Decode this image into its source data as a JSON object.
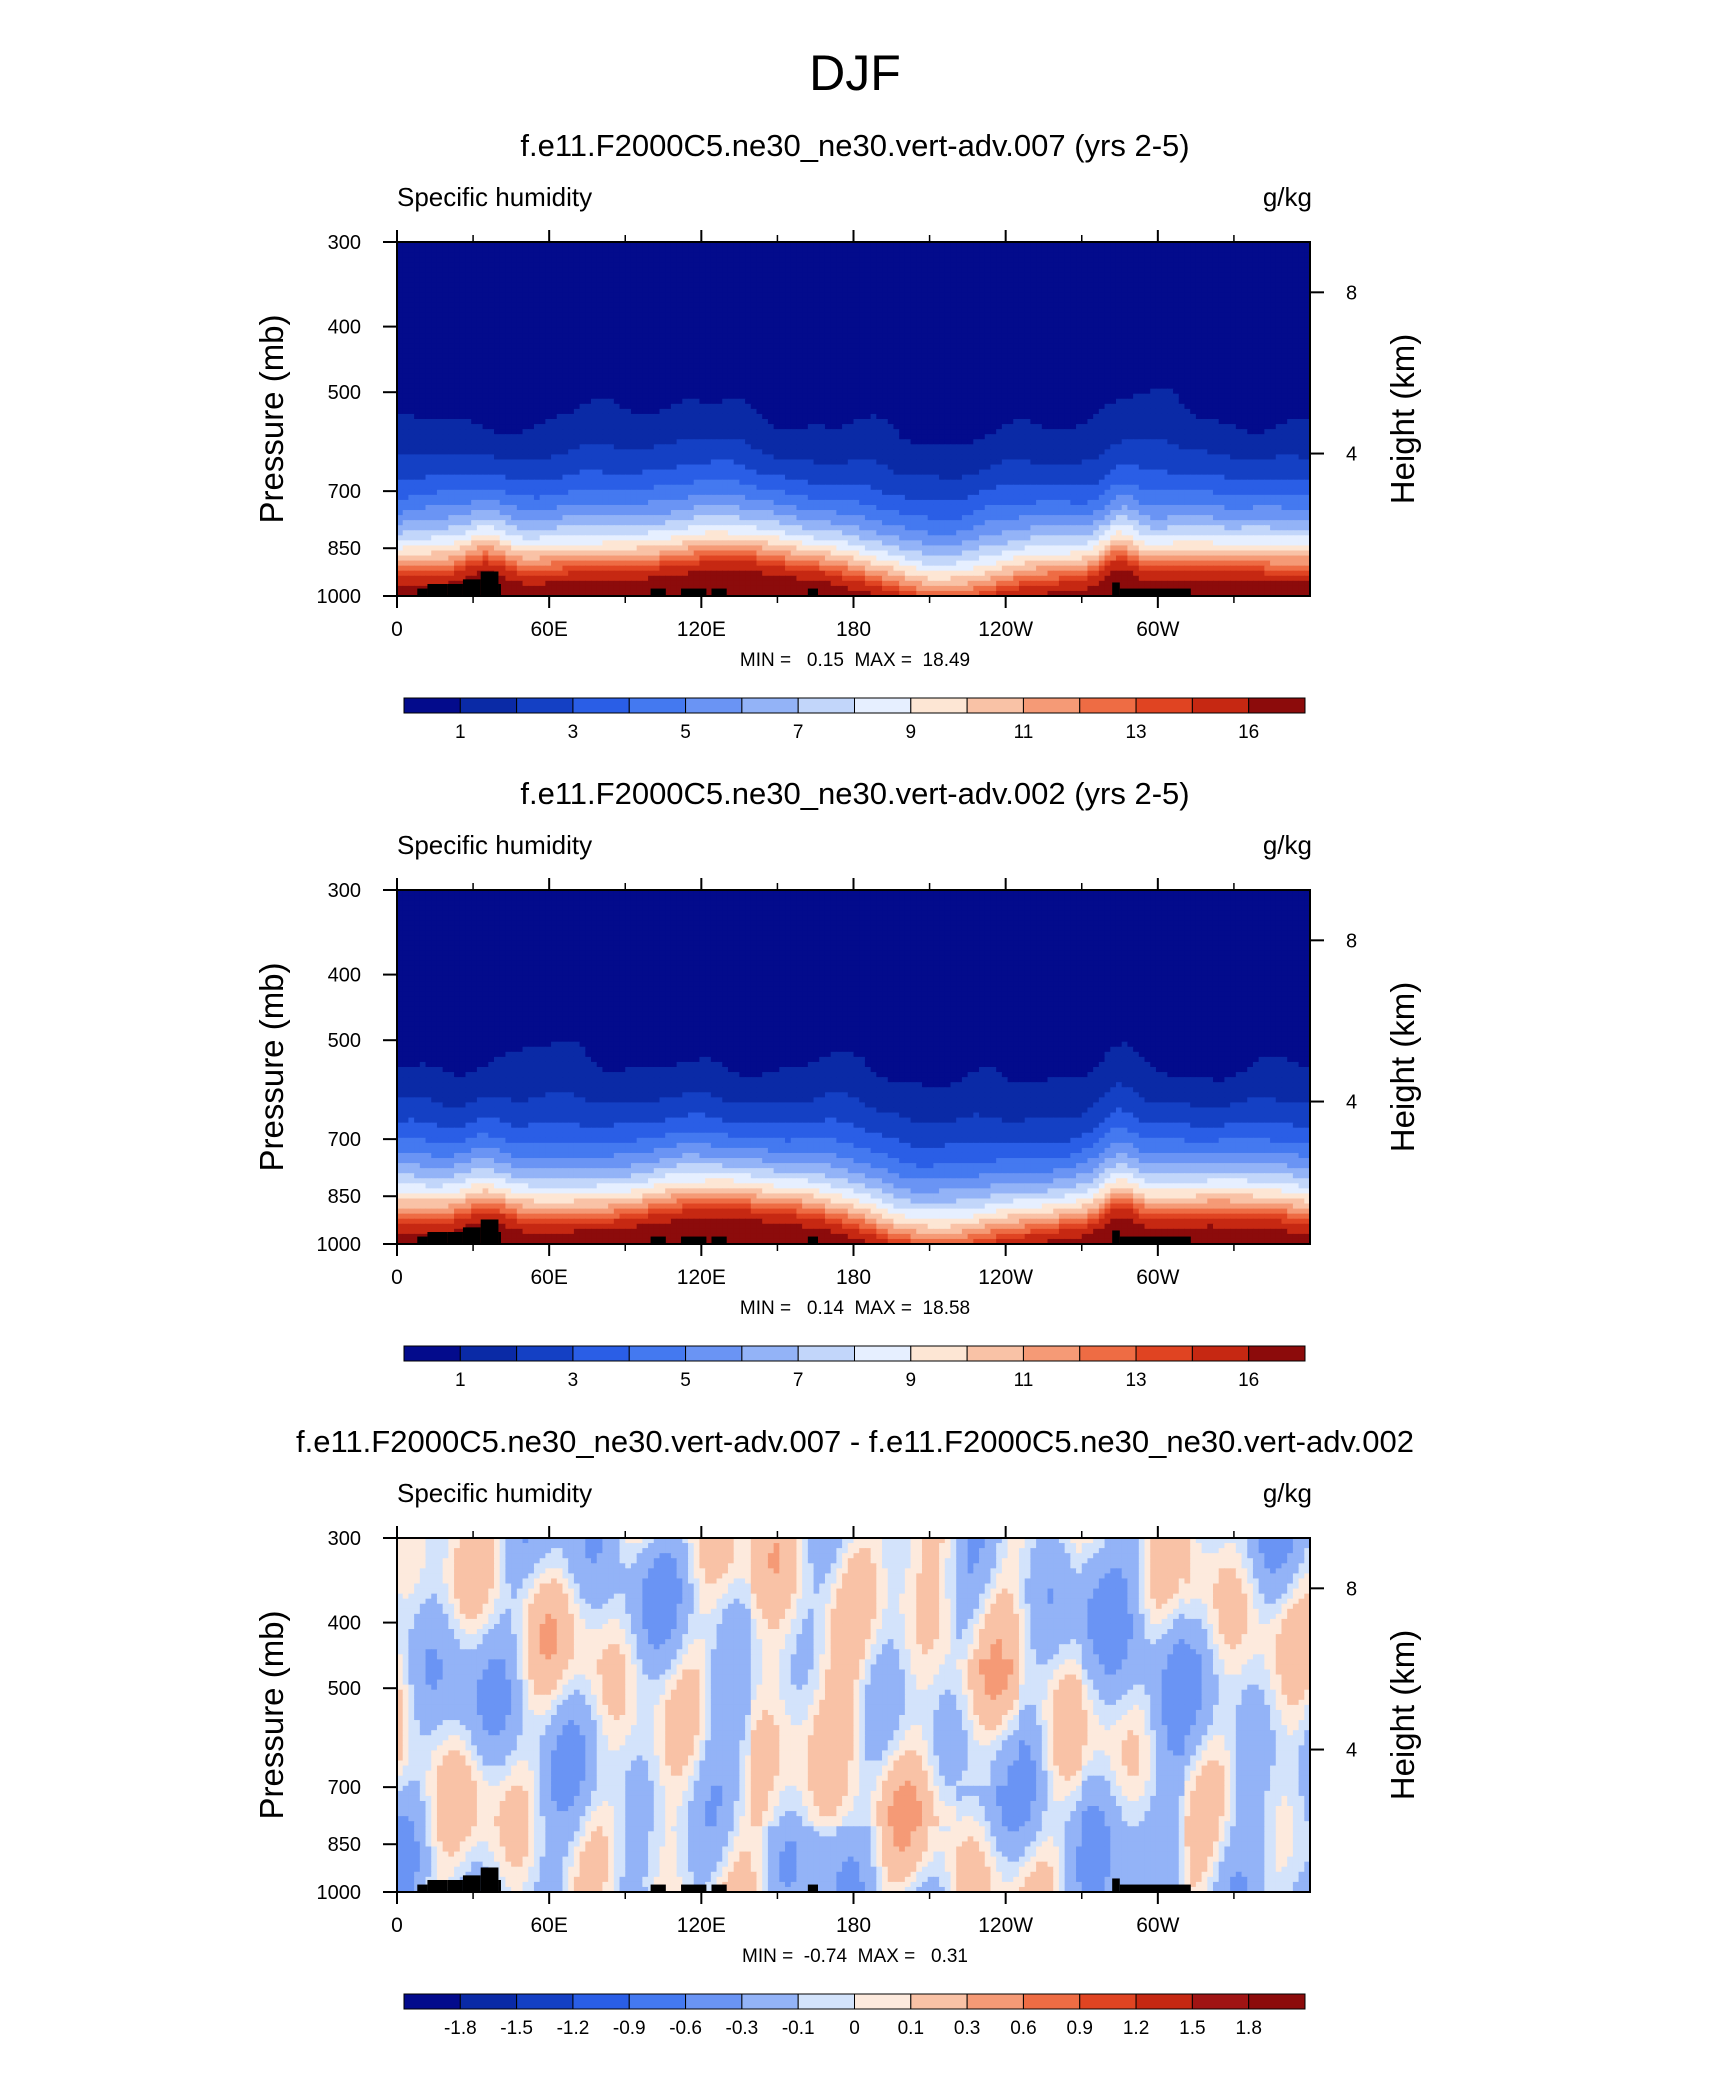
{
  "title": "DJF",
  "panels": [
    {
      "title": "f.e11.F2000C5.ne30_ne30.vert-adv.007 (yrs 2-5)",
      "variable": "Specific humidity",
      "units": "g/kg",
      "minmax": "MIN =   0.15  MAX =  18.49",
      "kind": "abs"
    },
    {
      "title": "f.e11.F2000C5.ne30_ne30.vert-adv.002 (yrs 2-5)",
      "variable": "Specific humidity",
      "units": "g/kg",
      "minmax": "MIN =   0.14  MAX =  18.58",
      "kind": "abs"
    },
    {
      "title": "f.e11.F2000C5.ne30_ne30.vert-adv.007 - f.e11.F2000C5.ne30_ne30.vert-adv.002",
      "variable": "Specific humidity",
      "units": "g/kg",
      "minmax": "MIN =  -0.74  MAX =   0.31",
      "kind": "diff"
    }
  ],
  "chart_data": [
    {
      "type": "heatmap",
      "panel": 0,
      "title": "f.e11.F2000C5.ne30_ne30.vert-adv.007 (yrs 2-5)",
      "variable": "Specific humidity",
      "units": "g/kg",
      "xlabel": "",
      "ylabel": "Pressure (mb)",
      "ylabel_right": "Height (km)",
      "x_ticks": [
        "0",
        "60E",
        "120E",
        "180",
        "120W",
        "60W"
      ],
      "y_ticks": [
        "300",
        "400",
        "500",
        "700",
        "850",
        "1000"
      ],
      "y_ticks_right": [
        "8",
        "4"
      ],
      "ylim": [
        1000,
        300
      ],
      "xlim": [
        0,
        360
      ],
      "min": 0.15,
      "max": 18.49,
      "colorbar_levels": [
        1,
        2,
        3,
        4,
        5,
        6,
        7,
        8,
        9,
        10,
        11,
        12,
        13,
        14,
        16
      ],
      "colorbar_labels": [
        "1",
        "3",
        "5",
        "7",
        "9",
        "11",
        "13",
        "16"
      ],
      "colors": [
        "#030b8c",
        "#0a2aa6",
        "#1440c4",
        "#2a5ee6",
        "#4479f0",
        "#6a94f4",
        "#93b3f7",
        "#c2d6fa",
        "#e6efff",
        "#fde6d4",
        "#f9c2a6",
        "#f59a76",
        "#ee6c44",
        "#e04422",
        "#c62812",
        "#8c0b0b"
      ]
    },
    {
      "type": "heatmap",
      "panel": 1,
      "title": "f.e11.F2000C5.ne30_ne30.vert-adv.002 (yrs 2-5)",
      "variable": "Specific humidity",
      "units": "g/kg",
      "xlabel": "",
      "ylabel": "Pressure (mb)",
      "ylabel_right": "Height (km)",
      "x_ticks": [
        "0",
        "60E",
        "120E",
        "180",
        "120W",
        "60W"
      ],
      "y_ticks": [
        "300",
        "400",
        "500",
        "700",
        "850",
        "1000"
      ],
      "y_ticks_right": [
        "8",
        "4"
      ],
      "ylim": [
        1000,
        300
      ],
      "xlim": [
        0,
        360
      ],
      "min": 0.14,
      "max": 18.58,
      "colorbar_levels": [
        1,
        2,
        3,
        4,
        5,
        6,
        7,
        8,
        9,
        10,
        11,
        12,
        13,
        14,
        16
      ],
      "colorbar_labels": [
        "1",
        "3",
        "5",
        "7",
        "9",
        "11",
        "13",
        "16"
      ],
      "colors": [
        "#030b8c",
        "#0a2aa6",
        "#1440c4",
        "#2a5ee6",
        "#4479f0",
        "#6a94f4",
        "#93b3f7",
        "#c2d6fa",
        "#e6efff",
        "#fde6d4",
        "#f9c2a6",
        "#f59a76",
        "#ee6c44",
        "#e04422",
        "#c62812",
        "#8c0b0b"
      ]
    },
    {
      "type": "heatmap",
      "panel": 2,
      "title": "f.e11.F2000C5.ne30_ne30.vert-adv.007 - f.e11.F2000C5.ne30_ne30.vert-adv.002",
      "variable": "Specific humidity",
      "units": "g/kg",
      "xlabel": "",
      "ylabel": "Pressure (mb)",
      "ylabel_right": "Height (km)",
      "x_ticks": [
        "0",
        "60E",
        "120E",
        "180",
        "120W",
        "60W"
      ],
      "y_ticks": [
        "300",
        "400",
        "500",
        "700",
        "850",
        "1000"
      ],
      "y_ticks_right": [
        "8",
        "4"
      ],
      "ylim": [
        1000,
        300
      ],
      "xlim": [
        0,
        360
      ],
      "min": -0.74,
      "max": 0.31,
      "colorbar_levels": [
        -1.8,
        -1.5,
        -1.2,
        -0.9,
        -0.6,
        -0.3,
        -0.1,
        0,
        0.1,
        0.3,
        0.6,
        0.9,
        1.2,
        1.5,
        1.8
      ],
      "colorbar_labels": [
        "-1.8",
        "-1.5",
        "-1.2",
        "-0.9",
        "-0.6",
        "-0.3",
        "-0.1",
        "0",
        "0.1",
        "0.3",
        "0.6",
        "0.9",
        "1.2",
        "1.5",
        "1.8"
      ],
      "colors": [
        "#030b8c",
        "#0a2aa6",
        "#1440c4",
        "#2a5ee6",
        "#4479f0",
        "#6a94f4",
        "#93b3f7",
        "#d3e3fb",
        "#fdeadd",
        "#f9c2a6",
        "#f59a76",
        "#ee6c44",
        "#e04422",
        "#c62812",
        "#a01414",
        "#8c0b0b"
      ]
    }
  ]
}
